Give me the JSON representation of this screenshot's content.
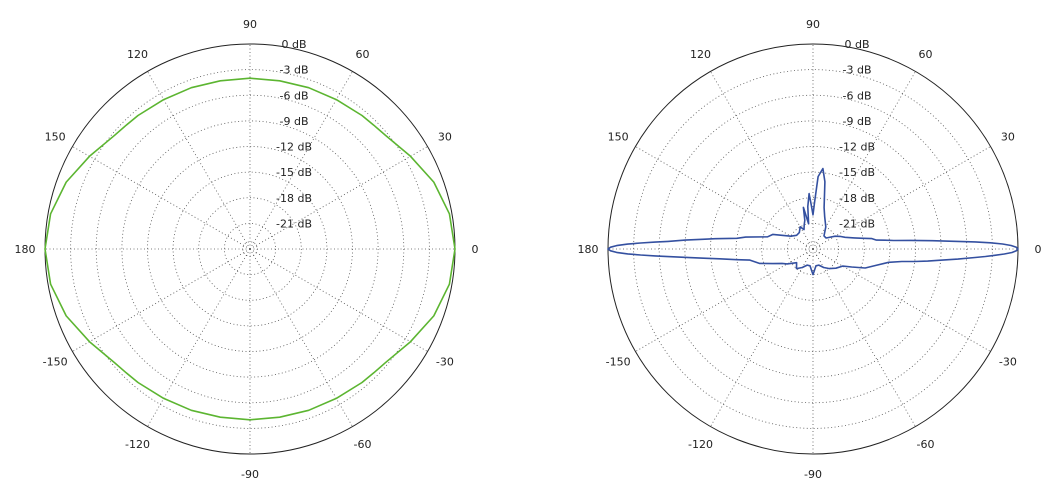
{
  "chart_data": [
    {
      "type": "polar",
      "angle_labels": [
        "0",
        "30",
        "60",
        "90",
        "120",
        "150",
        "180",
        "-150",
        "-120",
        "-90",
        "-60",
        "-30"
      ],
      "angle_values": [
        0,
        30,
        60,
        90,
        120,
        150,
        180,
        -150,
        -120,
        -90,
        -60,
        -30
      ],
      "radial_labels": [
        "0 dB",
        "-3 dB",
        "-6 dB",
        "-9 dB",
        "-12 dB",
        "-15 dB",
        "-18 dB",
        "-21 dB"
      ],
      "radial_values": [
        0,
        -3,
        -6,
        -9,
        -12,
        -15,
        -18,
        -21
      ],
      "rlim": [
        -24,
        0
      ],
      "grid": true,
      "series": [
        {
          "color": "#5cb531",
          "theta": [
            0,
            10,
            20,
            30,
            40,
            45,
            50,
            60,
            70,
            80,
            90,
            100,
            110,
            120,
            130,
            135,
            140,
            150,
            160,
            170,
            180,
            -170,
            -160,
            -150,
            -140,
            -135,
            -130,
            -120,
            -110,
            -100,
            -90,
            -80,
            -70,
            -60,
            -50,
            -45,
            -40,
            -30,
            -20,
            -10
          ],
          "r_db": [
            0,
            -0.3,
            -1.1,
            -2.3,
            -3.3,
            -3.5,
            -3.6,
            -3.8,
            -3.9,
            -4.0,
            -4.0,
            -4.0,
            -3.9,
            -3.8,
            -3.6,
            -3.5,
            -3.3,
            -2.3,
            -1.1,
            -0.3,
            0,
            -0.3,
            -1.1,
            -2.3,
            -3.3,
            -3.5,
            -3.6,
            -3.8,
            -3.9,
            -4.0,
            -4.0,
            -4.0,
            -3.9,
            -3.8,
            -3.6,
            -3.5,
            -3.3,
            -2.3,
            -1.1,
            -0.3
          ]
        }
      ]
    },
    {
      "type": "polar",
      "angle_labels": [
        "0",
        "30",
        "60",
        "90",
        "120",
        "150",
        "180",
        "-150",
        "-120",
        "-90",
        "-60",
        "-30"
      ],
      "angle_values": [
        0,
        30,
        60,
        90,
        120,
        150,
        180,
        -150,
        -120,
        -90,
        -60,
        -30
      ],
      "radial_labels": [
        "0 dB",
        "-3 dB",
        "-6 dB",
        "-9 dB",
        "-12 dB",
        "-15 dB",
        "-18 dB",
        "-21 dB"
      ],
      "radial_values": [
        0,
        -3,
        -6,
        -9,
        -12,
        -15,
        -18,
        -21
      ],
      "rlim": [
        -24,
        0
      ],
      "grid": true,
      "series": [
        {
          "color": "#3450a0",
          "theta": [
            0,
            0.5,
            1,
            1.5,
            2,
            2.5,
            3,
            4,
            5,
            6,
            7,
            8,
            10,
            12,
            15,
            20,
            25,
            30,
            40,
            50,
            60,
            70,
            75,
            80,
            83,
            86,
            88,
            90,
            92,
            94,
            97,
            100,
            103,
            106,
            110,
            115,
            120,
            130,
            140,
            150,
            160,
            165,
            170,
            172,
            174,
            175,
            176,
            177,
            177.5,
            178,
            178.5,
            179,
            179.5,
            180,
            -179.5,
            -179,
            -178.5,
            -178,
            -177.5,
            -177,
            -176,
            -175,
            -174,
            -172,
            -170,
            -165,
            -160,
            -155,
            -150,
            -140,
            -130,
            -120,
            -110,
            -100,
            -90,
            -80,
            -70,
            -60,
            -50,
            -40,
            -30,
            -25,
            -20,
            -15,
            -10,
            -8,
            -7,
            -6,
            -5,
            -4,
            -3,
            -2.5,
            -2,
            -1.5,
            -1,
            -0.5
          ],
          "r_db": [
            0,
            -0.2,
            -0.8,
            -1.8,
            -3.2,
            -5.0,
            -7.0,
            -10.0,
            -12.5,
            -14.5,
            -15.5,
            -16.5,
            -17.0,
            -18.0,
            -19.0,
            -20.0,
            -20.5,
            -21.0,
            -22.0,
            -22.0,
            -21.0,
            -20.0,
            -19.0,
            -16.0,
            -14.5,
            -15.5,
            -18.5,
            -20.0,
            -19.0,
            -17.5,
            -19.0,
            -21.0,
            -19.0,
            -20.5,
            -21.0,
            -21.5,
            -21.0,
            -21.5,
            -21.5,
            -21.0,
            -19.0,
            -18.5,
            -16.0,
            -15.0,
            -12.5,
            -11.0,
            -9.0,
            -7.0,
            -5.5,
            -3.8,
            -2.3,
            -1.0,
            -0.3,
            0,
            -0.3,
            -1.0,
            -2.3,
            -3.8,
            -5.5,
            -7.0,
            -9.5,
            -11.5,
            -13.0,
            -15.0,
            -16.5,
            -17.5,
            -19.0,
            -20.0,
            -20.5,
            -21.5,
            -21.0,
            -21.5,
            -22.0,
            -22.0,
            -21.0,
            -22.0,
            -22.0,
            -21.5,
            -21.0,
            -20.5,
            -20.0,
            -19.0,
            -17.5,
            -16.5,
            -15.0,
            -13.5,
            -12.0,
            -10.5,
            -9.0,
            -7.0,
            -5.0,
            -3.8,
            -2.7,
            -1.6,
            -0.7,
            -0.2
          ]
        }
      ]
    }
  ]
}
